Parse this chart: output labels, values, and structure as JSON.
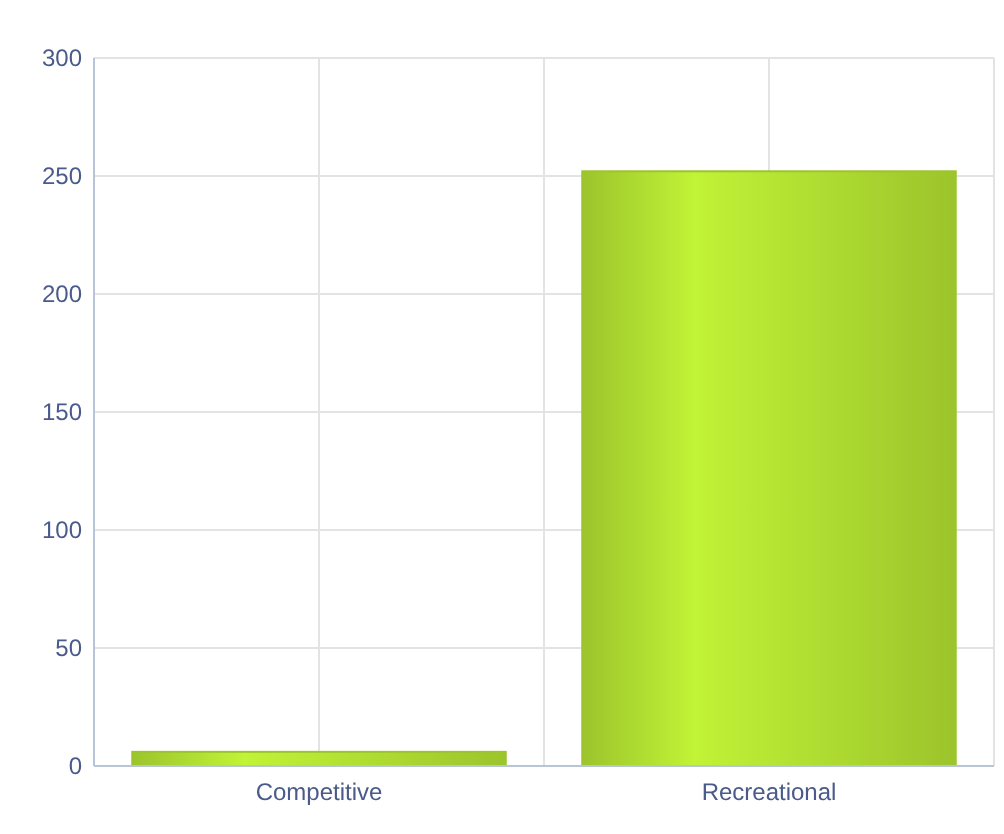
{
  "chart_data": {
    "type": "bar",
    "categories": [
      "Competitive",
      "Recreational"
    ],
    "values": [
      6,
      252
    ],
    "color": "#9cc42c",
    "ylim": [
      0,
      300
    ],
    "yticks": [
      0,
      50,
      100,
      150,
      200,
      250,
      300
    ],
    "grid": true
  }
}
